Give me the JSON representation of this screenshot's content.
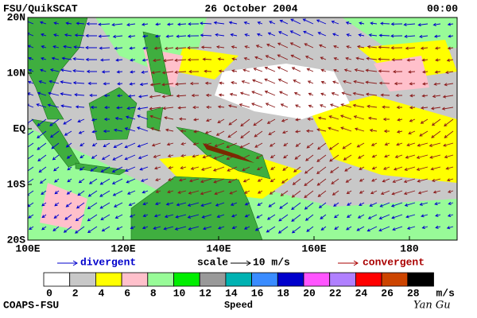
{
  "header": {
    "left": "FSU/QuikSCAT",
    "center": "26 October 2004",
    "right": "00:00"
  },
  "map": {
    "lat_labels": [
      "20N",
      "10N",
      "EQ",
      "10S",
      "20S"
    ],
    "lon_labels": [
      "100E",
      "120E",
      "140E",
      "160E",
      "180"
    ]
  },
  "legend": {
    "divergent": "divergent",
    "scale": "scale",
    "scale_value": "10 m/s",
    "convergent": "convergent"
  },
  "colorbar": {
    "colors": [
      "#ffffff",
      "#c8c8c8",
      "#ffff00",
      "#ffc0cb",
      "#98fb98",
      "#00ee00",
      "#999999",
      "#00b2b2",
      "#3a8cff",
      "#0000cc",
      "#ff55ff",
      "#b080ff",
      "#ff0000",
      "#cc4400",
      "#000000"
    ],
    "ticks": [
      0,
      2,
      4,
      6,
      8,
      10,
      12,
      14,
      16,
      18,
      20,
      22,
      24,
      26,
      28
    ],
    "unit": "m/s",
    "title": "Speed"
  },
  "footer": {
    "left": "COAPS-FSU",
    "right": "Yan Gu"
  }
}
